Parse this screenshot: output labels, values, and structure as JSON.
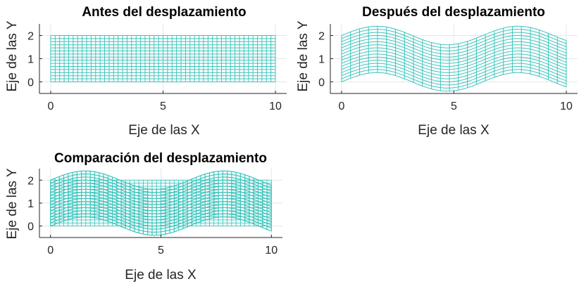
{
  "colors": {
    "mesh": "#3cc4bc",
    "axis": "#262626",
    "grid": "#e6e6e6",
    "background": "#ffffff"
  },
  "chart_data": [
    {
      "type": "line",
      "title": "Antes del desplazamiento",
      "xlabel": "Eje de las X",
      "ylabel": "Eje de las Y",
      "xlim": [
        -0.5,
        10.5
      ],
      "ylim": [
        -0.5,
        2.5
      ],
      "xticks": [
        0,
        5,
        10
      ],
      "yticks": [
        0,
        1,
        2
      ],
      "grid": true,
      "mesh": {
        "x_range": [
          0,
          10
        ],
        "y_range": [
          0,
          2
        ],
        "x_divisions": 50,
        "y_divisions": 15
      },
      "displacement": null
    },
    {
      "type": "line",
      "title": "Después del desplazamiento",
      "xlabel": "Eje de las X",
      "ylabel": "Eje de las Y",
      "xlim": [
        -0.5,
        10.5
      ],
      "ylim": [
        -0.5,
        2.5
      ],
      "xticks": [
        0,
        5,
        10
      ],
      "yticks": [
        0,
        1,
        2
      ],
      "grid": true,
      "mesh": {
        "x_range": [
          0,
          10
        ],
        "y_range": [
          0,
          2
        ],
        "x_divisions": 25,
        "y_divisions": 15
      },
      "displacement": {
        "function": "y + A*sin(x)",
        "amplitude": 0.4
      }
    },
    {
      "type": "line",
      "title": "Comparación del desplazamiento",
      "xlabel": "Eje de las X",
      "ylabel": "Eje de las Y",
      "xlim": [
        -0.5,
        10.5
      ],
      "ylim": [
        -0.5,
        2.5
      ],
      "xticks": [
        0,
        5,
        10
      ],
      "yticks": [
        0,
        1,
        2
      ],
      "grid": true,
      "mesh": {
        "x_range": [
          0,
          10
        ],
        "y_range": [
          0,
          2
        ],
        "x_divisions": 50,
        "y_divisions": 15
      },
      "displacement": {
        "function": "y + A*sin(x)",
        "amplitude": 0.4
      },
      "overlay_original": true
    }
  ]
}
